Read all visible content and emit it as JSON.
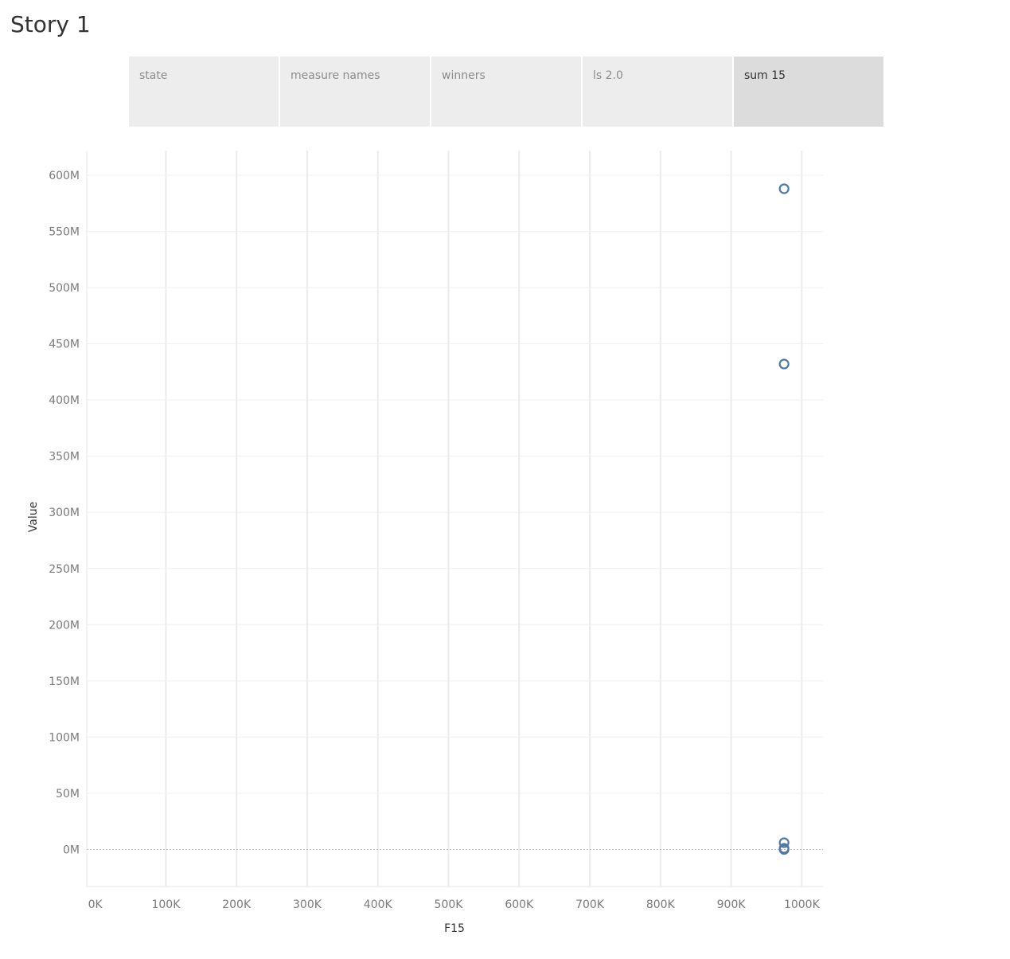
{
  "story": {
    "title": "Story 1",
    "points": [
      {
        "label": "state",
        "active": false
      },
      {
        "label": "measure names",
        "active": false
      },
      {
        "label": "winners",
        "active": false
      },
      {
        "label": "ls 2.0",
        "active": false
      },
      {
        "label": "sum 15",
        "active": true
      }
    ]
  },
  "chart_data": {
    "type": "scatter",
    "xlabel": "F15",
    "ylabel": "Value",
    "x_ticks": [
      {
        "value": 0,
        "label": "0K"
      },
      {
        "value": 100000,
        "label": "100K"
      },
      {
        "value": 200000,
        "label": "200K"
      },
      {
        "value": 300000,
        "label": "300K"
      },
      {
        "value": 400000,
        "label": "400K"
      },
      {
        "value": 500000,
        "label": "500K"
      },
      {
        "value": 600000,
        "label": "600K"
      },
      {
        "value": 700000,
        "label": "700K"
      },
      {
        "value": 800000,
        "label": "800K"
      },
      {
        "value": 900000,
        "label": "900K"
      },
      {
        "value": 1000000,
        "label": "1000K"
      }
    ],
    "y_ticks": [
      {
        "value": 0,
        "label": "0M"
      },
      {
        "value": 50000000,
        "label": "50M"
      },
      {
        "value": 100000000,
        "label": "100M"
      },
      {
        "value": 150000000,
        "label": "150M"
      },
      {
        "value": 200000000,
        "label": "200M"
      },
      {
        "value": 250000000,
        "label": "250M"
      },
      {
        "value": 300000000,
        "label": "300M"
      },
      {
        "value": 350000000,
        "label": "350M"
      },
      {
        "value": 400000000,
        "label": "400M"
      },
      {
        "value": 450000000,
        "label": "450M"
      },
      {
        "value": 500000000,
        "label": "500M"
      },
      {
        "value": 550000000,
        "label": "550M"
      },
      {
        "value": 600000000,
        "label": "600M"
      }
    ],
    "xlim": [
      -12000,
      1030000
    ],
    "ylim": [
      -33000000,
      622000000
    ],
    "grid": true,
    "zero_line": true,
    "marker": "open-circle",
    "color": "#4e79a7",
    "points": [
      {
        "x": 975000,
        "y": 588000000
      },
      {
        "x": 975000,
        "y": 432000000
      },
      {
        "x": 975000,
        "y": 6000000
      },
      {
        "x": 975000,
        "y": 1000000
      },
      {
        "x": 975000,
        "y": 0
      }
    ]
  }
}
